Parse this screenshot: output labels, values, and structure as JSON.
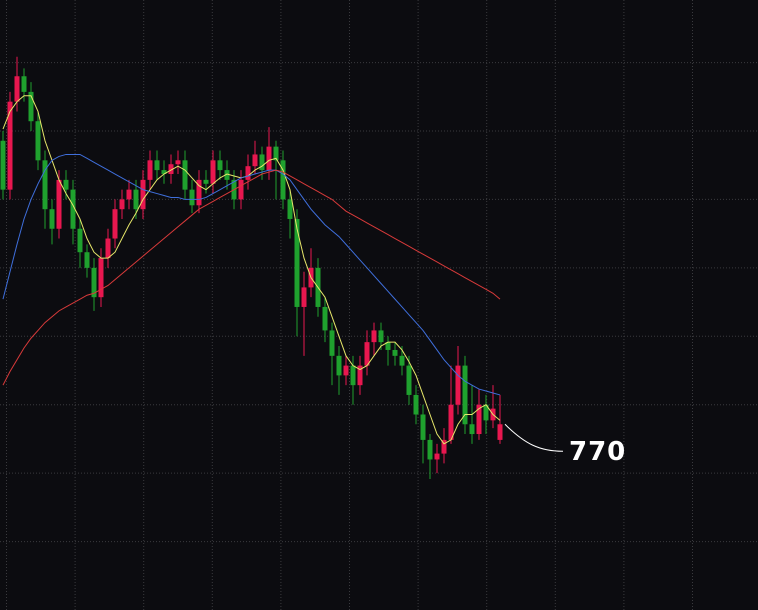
{
  "chart_data": {
    "type": "candlestick",
    "x": [
      null,
      null,
      null,
      null,
      null,
      null,
      null,
      null,
      null,
      null,
      null,
      null,
      null,
      null,
      null,
      null,
      null,
      null,
      null,
      null,
      null,
      null,
      null,
      null,
      null,
      null,
      null,
      null,
      null,
      null,
      null,
      null,
      null,
      null,
      null,
      null,
      null,
      null,
      null,
      null,
      null,
      null,
      null,
      null,
      null,
      null,
      null,
      null,
      null,
      null,
      null,
      null,
      null,
      null,
      null,
      null,
      null,
      null,
      null,
      null,
      null,
      null,
      null,
      null,
      null,
      null,
      null,
      null,
      null,
      null,
      null,
      null
    ],
    "open": [
      915,
      890,
      935,
      948,
      940,
      925,
      905,
      880,
      870,
      895,
      890,
      870,
      858,
      850,
      835,
      855,
      865,
      880,
      885,
      890,
      880,
      895,
      905,
      900,
      898,
      903,
      905,
      890,
      882,
      895,
      893,
      905,
      900,
      895,
      885,
      895,
      902,
      908,
      900,
      912,
      905,
      885,
      875,
      830,
      840,
      850,
      830,
      818,
      805,
      795,
      800,
      790,
      800,
      812,
      818,
      812,
      808,
      805,
      800,
      785,
      775,
      762,
      752,
      755,
      762,
      780,
      800,
      770,
      765,
      780,
      772,
      762
    ],
    "high": [
      920,
      940,
      958,
      952,
      945,
      930,
      910,
      885,
      900,
      900,
      895,
      875,
      862,
      855,
      860,
      870,
      885,
      890,
      895,
      895,
      900,
      910,
      910,
      905,
      908,
      910,
      910,
      895,
      900,
      900,
      910,
      910,
      905,
      900,
      900,
      908,
      915,
      912,
      922,
      915,
      910,
      890,
      880,
      848,
      860,
      855,
      835,
      822,
      810,
      805,
      805,
      805,
      818,
      822,
      822,
      815,
      812,
      810,
      805,
      790,
      780,
      765,
      760,
      768,
      800,
      810,
      805,
      790,
      788,
      785,
      790,
      785
    ],
    "low": [
      885,
      885,
      930,
      935,
      920,
      900,
      870,
      862,
      865,
      885,
      862,
      850,
      845,
      828,
      830,
      850,
      860,
      875,
      880,
      875,
      875,
      890,
      895,
      893,
      893,
      898,
      885,
      878,
      878,
      888,
      888,
      895,
      890,
      880,
      880,
      890,
      898,
      895,
      895,
      885,
      880,
      865,
      815,
      805,
      835,
      825,
      812,
      790,
      785,
      790,
      780,
      785,
      795,
      805,
      808,
      800,
      800,
      795,
      780,
      770,
      750,
      742,
      745,
      750,
      760,
      775,
      765,
      760,
      762,
      765,
      768,
      760
    ],
    "close": [
      890,
      935,
      948,
      940,
      925,
      905,
      880,
      870,
      895,
      890,
      870,
      858,
      850,
      835,
      855,
      865,
      880,
      885,
      890,
      880,
      895,
      905,
      900,
      898,
      903,
      905,
      890,
      882,
      895,
      893,
      905,
      900,
      895,
      885,
      895,
      902,
      908,
      900,
      912,
      905,
      885,
      875,
      830,
      840,
      850,
      830,
      818,
      805,
      795,
      800,
      790,
      800,
      812,
      818,
      812,
      808,
      805,
      800,
      785,
      775,
      762,
      752,
      755,
      762,
      780,
      800,
      770,
      765,
      780,
      772,
      778,
      770
    ],
    "up_color": "#e8174f",
    "down_color": "#1fa12e",
    "series": [
      {
        "color": "#e6e66a",
        "values": [
          921,
          930,
          935,
          938,
          938,
          930,
          915,
          905,
          895,
          888,
          882,
          875,
          865,
          858,
          855,
          855,
          858,
          865,
          872,
          878,
          885,
          890,
          895,
          898,
          900,
          902,
          900,
          896,
          892,
          890,
          893,
          896,
          898,
          897,
          896,
          897,
          900,
          902,
          905,
          906,
          900,
          890,
          870,
          855,
          845,
          840,
          835,
          825,
          815,
          805,
          800,
          798,
          800,
          805,
          810,
          812,
          812,
          808,
          802,
          795,
          785,
          775,
          765,
          760,
          762,
          770,
          775,
          775,
          778,
          780,
          775,
          772
        ]
      },
      {
        "color": "#3f6fdc",
        "values": [
          834,
          848,
          862,
          875,
          885,
          893,
          900,
          905,
          907,
          908,
          908,
          908,
          906,
          904,
          902,
          900,
          898,
          896,
          894,
          892,
          890,
          889,
          888,
          887,
          886,
          886,
          885,
          885,
          885,
          886,
          888,
          890,
          892,
          894,
          896,
          897,
          898,
          899,
          900,
          900,
          898,
          895,
          890,
          885,
          880,
          876,
          872,
          869,
          866,
          862,
          858,
          854,
          850,
          846,
          842,
          838,
          834,
          830,
          826,
          822,
          818,
          813,
          808,
          803,
          799,
          795,
          792,
          790,
          788,
          787,
          786,
          785
        ]
      },
      {
        "color": "#d83a3a",
        "values": [
          790,
          797,
          803,
          809,
          814,
          818,
          822,
          825,
          828,
          830,
          832,
          834,
          836,
          837,
          839,
          841,
          844,
          847,
          850,
          853,
          856,
          859,
          862,
          865,
          868,
          871,
          874,
          877,
          880,
          882,
          884,
          886,
          888,
          890,
          892,
          894,
          896,
          898,
          899,
          900,
          899,
          897,
          895,
          893,
          891,
          889,
          887,
          885,
          882,
          879,
          877,
          875,
          873,
          871,
          869,
          867,
          865,
          863,
          861,
          859,
          857,
          855,
          853,
          851,
          849,
          847,
          845,
          843,
          841,
          839,
          837,
          834
        ]
      }
    ],
    "ylim": [
      675,
      987
    ],
    "yticks": [
      955,
      920,
      885,
      850,
      815,
      780,
      745,
      710
    ],
    "grid": true,
    "annotation": {
      "text": "770"
    }
  }
}
